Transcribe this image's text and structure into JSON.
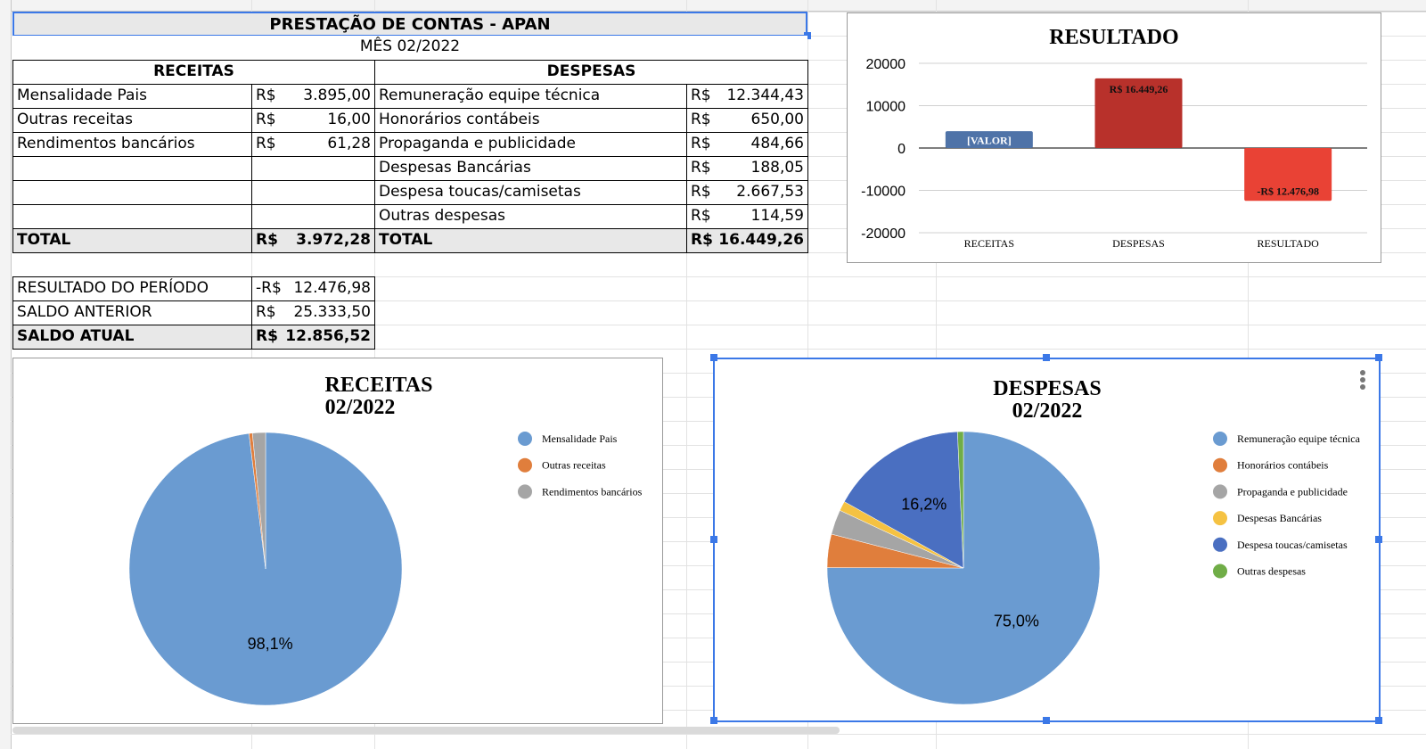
{
  "sheet": {
    "title": "PRESTAÇÃO DE CONTAS - APAN",
    "month": "MÊS 02/2022",
    "receitas_header": "RECEITAS",
    "despesas_header": "DESPESAS",
    "currency": "R$",
    "receitas": [
      {
        "label": "Mensalidade Pais",
        "value": "3.895,00"
      },
      {
        "label": "Outras receitas",
        "value": "16,00"
      },
      {
        "label": "Rendimentos bancários",
        "value": "61,28"
      }
    ],
    "despesas": [
      {
        "label": "Remuneração equipe técnica",
        "value": "12.344,43"
      },
      {
        "label": "Honorários contábeis",
        "value": "650,00"
      },
      {
        "label": "Propaganda e publicidade",
        "value": "484,66"
      },
      {
        "label": "Despesas Bancárias",
        "value": "188,05"
      },
      {
        "label": "Despesa toucas/camisetas",
        "value": "2.667,53"
      },
      {
        "label": "Outras despesas",
        "value": "114,59"
      }
    ],
    "total_label": "TOTAL",
    "total_receitas": "3.972,28",
    "total_despesas": "16.449,26",
    "summary": [
      {
        "label": "RESULTADO DO PERÍODO",
        "currency": "-R$",
        "value": "12.476,98"
      },
      {
        "label": "SALDO ANTERIOR",
        "currency": "R$",
        "value": "25.333,50"
      },
      {
        "label": "SALDO ATUAL",
        "currency": "R$",
        "value": "12.856,52"
      }
    ]
  },
  "chart_data": [
    {
      "type": "bar",
      "title": "RESULTADO",
      "categories": [
        "RECEITAS",
        "DESPESAS",
        "RESULTADO"
      ],
      "values": [
        3972.28,
        16449.26,
        -12476.98
      ],
      "data_labels": [
        "[VALOR]",
        "R$  16.449,26",
        "-R$  12.476,98"
      ],
      "colors": [
        "#4f73a8",
        "#b8312b",
        "#e94235"
      ],
      "ylim": [
        -20000,
        20000
      ],
      "yticks": [
        "20000",
        "10000",
        "0",
        "-10000",
        "-20000"
      ],
      "grid": true
    },
    {
      "type": "pie",
      "title": "RECEITAS",
      "subtitle": "02/2022",
      "labels": [
        "Mensalidade Pais",
        "Outras receitas",
        "Rendimentos bancários"
      ],
      "values": [
        3895.0,
        16.0,
        61.28
      ],
      "colors": [
        "#6a9bd1",
        "#e07e3c",
        "#a5a5a5"
      ],
      "slice_labels": [
        "98,1%",
        "",
        ""
      ],
      "legend": "right"
    },
    {
      "type": "pie",
      "title": "DESPESAS",
      "subtitle": "02/2022",
      "labels": [
        "Remuneração equipe técnica",
        "Honorários contábeis",
        "Propaganda e publicidade",
        "Despesas Bancárias",
        "Despesa toucas/camisetas",
        "Outras despesas"
      ],
      "values": [
        12344.43,
        650.0,
        484.66,
        188.05,
        2667.53,
        114.59
      ],
      "colors": [
        "#6a9bd1",
        "#e07e3c",
        "#a5a5a5",
        "#f5c242",
        "#4a6fc1",
        "#70ad47"
      ],
      "slice_labels": [
        "75,0%",
        "",
        "",
        "",
        "16,2%",
        ""
      ],
      "legend": "right"
    }
  ]
}
